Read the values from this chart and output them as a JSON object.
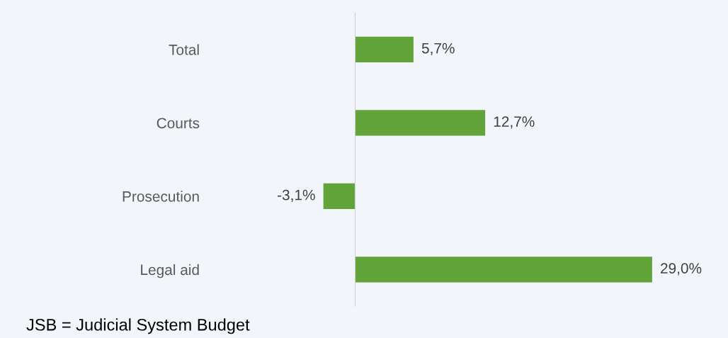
{
  "chart_data": {
    "type": "bar",
    "orientation": "horizontal",
    "categories": [
      "Total",
      "Courts",
      "Prosecution",
      "Legal aid"
    ],
    "values": [
      5.7,
      12.7,
      -3.1,
      29.0
    ],
    "value_labels": [
      "5,7%",
      "12,7%",
      "-3,1%",
      "29,0%"
    ],
    "color": "#62a43a",
    "grid": false,
    "legend": false,
    "tick_labels": "y",
    "annotations": [
      "JSB = Judicial System Budget"
    ]
  }
}
